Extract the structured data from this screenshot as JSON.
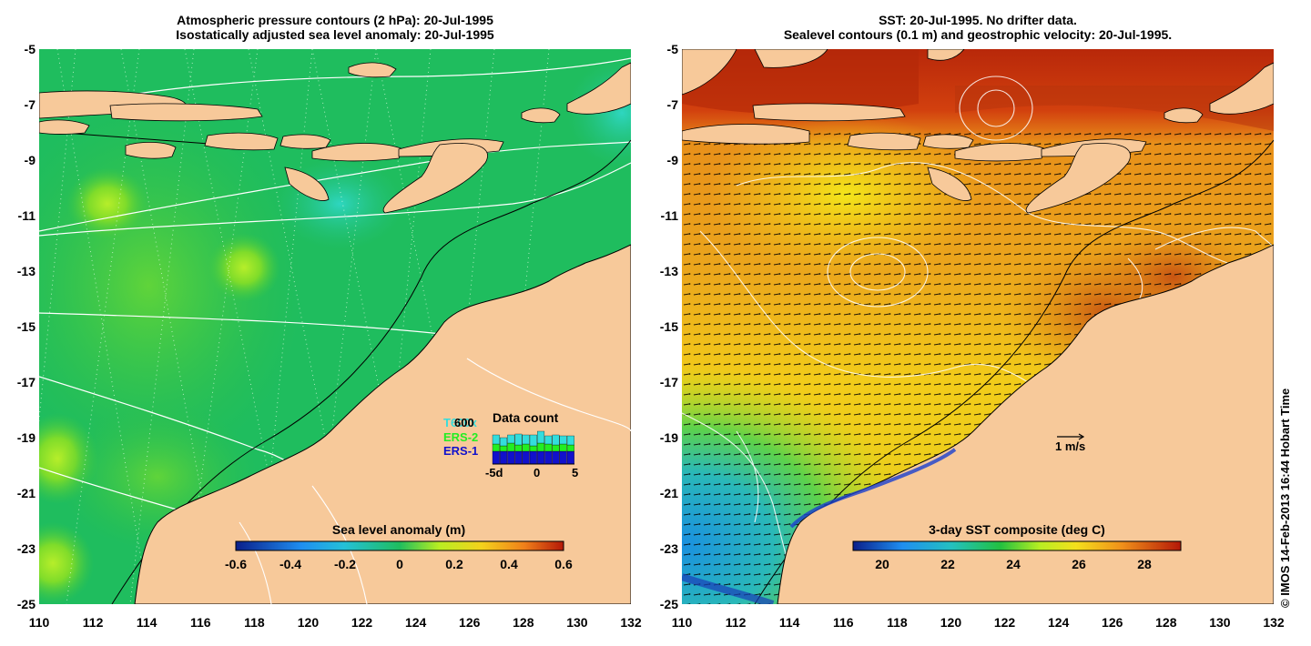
{
  "left_panel": {
    "title_line1": "Atmospheric pressure contours (2 hPa): 20-Jul-1995",
    "title_line2": "Isostatically adjusted sea level anomaly: 20-Jul-1995",
    "colorbar_title": "Sea level anomaly (m)",
    "colorbar_ticks": [
      "-0.6",
      "-0.4",
      "-0.2",
      "0",
      "0.2",
      "0.4",
      "0.6"
    ],
    "inset": {
      "title": "Data count",
      "ymax_label": "600",
      "series": [
        {
          "name": "TOPEX",
          "label": "T600x",
          "color": "#33dddd"
        },
        {
          "name": "ERS-2",
          "label": "ERS-2",
          "color": "#22ee22"
        },
        {
          "name": "ERS-1",
          "label": "ERS-1",
          "color": "#1111cc"
        }
      ],
      "xticks": [
        "-5d",
        "0",
        "5"
      ]
    }
  },
  "right_panel": {
    "title_line1": "SST: 20-Jul-1995. No drifter data.",
    "title_line2": "Sealevel contours (0.1 m) and geostrophic velocity: 20-Jul-1995.",
    "colorbar_title": "3-day SST composite (deg C)",
    "colorbar_ticks": [
      "20",
      "22",
      "24",
      "26",
      "28"
    ],
    "velocity_scale_label": "1 m/s"
  },
  "axes": {
    "y_ticks": [
      "-5",
      "-7",
      "-9",
      "-11",
      "-13",
      "-15",
      "-17",
      "-19",
      "-21",
      "-23",
      "-25"
    ],
    "x_ticks": [
      "110",
      "112",
      "114",
      "116",
      "118",
      "120",
      "122",
      "124",
      "126",
      "128",
      "130",
      "132"
    ],
    "lon_range": [
      110,
      132
    ],
    "lat_range": [
      -25,
      -5
    ]
  },
  "credit": "© IMOS 14-Feb-2013 16:44 Hobart Time",
  "colors": {
    "land": "#f7c99a",
    "sla_background": "#22c35a",
    "sst_warm": "#e88a18",
    "sst_hot": "#b8280a",
    "sst_cool": "#2a9ee6"
  }
}
